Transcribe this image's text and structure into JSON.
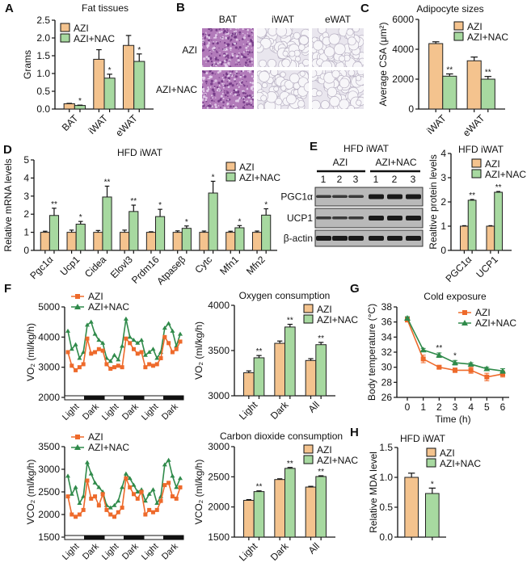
{
  "colors": {
    "azi_bar": "#F4C38E",
    "nac_bar": "#A7D9A0",
    "azi_line": "#EE6A2B",
    "nac_line": "#2F8A4A",
    "bat_stain": "#B27BBA",
    "wat_stain": "#E9E6EE"
  },
  "panels": {
    "B": {
      "label": "B",
      "columns": [
        "BAT",
        "iWAT",
        "eWAT"
      ],
      "rows": [
        "AZI",
        "AZI+NAC"
      ]
    },
    "E_blot": {
      "label": "E",
      "title": "HFD iWAT",
      "groups": [
        "AZI",
        "AZI+NAC"
      ],
      "lanes": [
        "1",
        "2",
        "3",
        "1",
        "2",
        "3"
      ],
      "bands": [
        "PGC1α",
        "UCP1",
        "β-actin"
      ]
    }
  },
  "chart_data": [
    {
      "panel_label": "A",
      "type": "bar",
      "title": "Fat tissues",
      "xlabel": "",
      "ylabel": "Grams",
      "categories": [
        "BAT",
        "iWAT",
        "eWAT"
      ],
      "series": [
        {
          "name": "AZI",
          "values": [
            0.15,
            1.4,
            1.79
          ],
          "errors": [
            0.01,
            0.27,
            0.28
          ]
        },
        {
          "name": "AZI+NAC",
          "values": [
            0.1,
            0.87,
            1.34
          ],
          "errors": [
            0.01,
            0.11,
            0.21
          ]
        }
      ],
      "significance": [
        "*",
        "*",
        "*"
      ],
      "ylim": [
        0,
        2.5
      ],
      "yticks": [
        "0.0",
        "0.5",
        "1.0",
        "1.5",
        "2.0",
        "2.5"
      ],
      "legend": "top-left"
    },
    {
      "panel_label": "C",
      "type": "bar",
      "title": "Adipocyte sizes",
      "xlabel": "",
      "ylabel": "Average CSA (μm²)",
      "categories": [
        "iWAT",
        "eWAT"
      ],
      "series": [
        {
          "name": "AZI",
          "values": [
            4380,
            3230
          ],
          "errors": [
            120,
            250
          ]
        },
        {
          "name": "AZI+NAC",
          "values": [
            2200,
            2000
          ],
          "errors": [
            150,
            180
          ]
        }
      ],
      "significance": [
        "**",
        "**"
      ],
      "ylim": [
        0,
        6000
      ],
      "yticks": [
        "0",
        "2000",
        "4000",
        "6000"
      ],
      "legend": "top-right"
    },
    {
      "panel_label": "D",
      "type": "bar",
      "title": "HFD iWAT",
      "xlabel": "",
      "ylabel": "Relative mRNA levels",
      "categories": [
        "Pgc1α",
        "Ucp1",
        "Cidea",
        "Elovl3",
        "Prdm16",
        "Atpaseβ",
        "Cytc",
        "Mfn1",
        "Mfn2"
      ],
      "series": [
        {
          "name": "AZI",
          "values": [
            1,
            1,
            1,
            1,
            1,
            1,
            1,
            1,
            1
          ],
          "errors": [
            0.06,
            0.12,
            0.1,
            0.12,
            0.03,
            0.08,
            0.07,
            0.06,
            0.07
          ]
        },
        {
          "name": "AZI+NAC",
          "values": [
            1.93,
            1.45,
            2.95,
            2.15,
            1.87,
            1.22,
            3.17,
            1.25,
            1.95
          ],
          "errors": [
            0.4,
            0.15,
            0.6,
            0.35,
            0.4,
            0.13,
            0.65,
            0.12,
            0.35
          ]
        }
      ],
      "significance": [
        "**",
        "*",
        "**",
        "**",
        "*",
        "*",
        "*",
        "*",
        "*"
      ],
      "ylim": [
        0,
        5
      ],
      "yticks": [
        "0",
        "1",
        "2",
        "3",
        "4",
        "5"
      ],
      "legend": "top-right"
    },
    {
      "panel_label": "",
      "type": "bar",
      "title": "HFD iWAT",
      "xlabel": "",
      "ylabel": "Realtive protein levels",
      "categories": [
        "PGC1α",
        "UCP1"
      ],
      "series": [
        {
          "name": "AZI",
          "values": [
            1.0,
            1.0
          ],
          "errors": [
            0.02,
            0.02
          ]
        },
        {
          "name": "AZI+NAC",
          "values": [
            2.07,
            2.4
          ],
          "errors": [
            0.03,
            0.03
          ]
        }
      ],
      "significance": [
        "**",
        "**"
      ],
      "ylim": [
        0,
        4
      ],
      "yticks": [
        "0",
        "1",
        "2",
        "3",
        "4"
      ],
      "legend": "top-right"
    },
    {
      "panel_label": "F",
      "type": "line",
      "title": "",
      "xlabel": "",
      "ylabel": "VO₂ (ml/kg/h)",
      "phases": [
        "Light",
        "Dark",
        "Light",
        "Dark",
        "Light",
        "Dark"
      ],
      "series": [
        {
          "name": "AZI",
          "values": [
            3500,
            3050,
            2900,
            3000,
            3100,
            3950,
            3450,
            3500,
            3600,
            3550,
            3100,
            2950,
            3000,
            3050,
            3000,
            3950,
            3800,
            3600,
            3450,
            3500,
            3000,
            3100,
            3050,
            3100,
            3300,
            4000,
            3800,
            3500,
            3600,
            3850
          ]
        },
        {
          "name": "AZI+NAC",
          "values": [
            4200,
            3600,
            3750,
            3300,
            3500,
            4400,
            4500,
            4100,
            3900,
            3800,
            3300,
            3200,
            3400,
            3250,
            3700,
            4600,
            4000,
            3900,
            3800,
            3900,
            3400,
            3500,
            3600,
            3300,
            3500,
            4300,
            4450,
            4200,
            3700,
            4100
          ]
        }
      ],
      "ylim": [
        2000,
        5000
      ],
      "yticks": [
        "2000",
        "3000",
        "4000",
        "5000"
      ],
      "legend": "top-left"
    },
    {
      "panel_label": "",
      "type": "bar",
      "title": "Oxygen consumption",
      "xlabel": "",
      "ylabel": "VO₂ (ml/kg/h)",
      "categories": [
        "Light",
        "Dark",
        "All"
      ],
      "series": [
        {
          "name": "AZI",
          "values": [
            3255,
            3580,
            3390
          ],
          "errors": [
            20,
            25,
            20
          ]
        },
        {
          "name": "AZI+NAC",
          "values": [
            3420,
            3760,
            3565
          ],
          "errors": [
            25,
            30,
            25
          ]
        }
      ],
      "significance": [
        "**",
        "**",
        "**"
      ],
      "ylim": [
        3000,
        4000
      ],
      "yticks": [
        "3000",
        "3500",
        "4000"
      ],
      "legend": "top-right"
    },
    {
      "panel_label": "",
      "type": "line",
      "title": "",
      "xlabel": "",
      "ylabel": "VCO₂ (ml/kg/h)",
      "phases": [
        "Light",
        "Dark",
        "Light",
        "Dark",
        "Light",
        "Dark"
      ],
      "series": [
        {
          "name": "AZI",
          "values": [
            2400,
            2000,
            1950,
            2000,
            2100,
            2750,
            2350,
            2400,
            2200,
            2450,
            2100,
            2000,
            1950,
            2050,
            2150,
            2800,
            2600,
            2450,
            2350,
            2500,
            2000,
            2100,
            2050,
            2100,
            2300,
            2650,
            2700,
            2400,
            2350,
            2600
          ]
        },
        {
          "name": "AZI+NAC",
          "values": [
            2850,
            2450,
            2600,
            2250,
            2400,
            3150,
            2900,
            2700,
            2600,
            2500,
            2200,
            2150,
            2200,
            2300,
            2600,
            2900,
            2800,
            2650,
            2500,
            2550,
            2300,
            2450,
            2550,
            2250,
            2400,
            3100,
            3200,
            2850,
            2600,
            2800
          ]
        }
      ],
      "ylim": [
        1500,
        3500
      ],
      "yticks": [
        "1500",
        "2000",
        "2500",
        "3000",
        "3500"
      ],
      "legend": "top-left"
    },
    {
      "panel_label": "",
      "type": "bar",
      "title": "Carbon dioxide consumption",
      "xlabel": "",
      "ylabel": "VCO₂ (ml/kg/h)",
      "categories": [
        "Light",
        "Dark",
        "All"
      ],
      "series": [
        {
          "name": "AZI",
          "values": [
            2110,
            2455,
            2330
          ],
          "errors": [
            12,
            12,
            12
          ]
        },
        {
          "name": "AZI+NAC",
          "values": [
            2255,
            2640,
            2505
          ],
          "errors": [
            12,
            15,
            12
          ]
        }
      ],
      "significance": [
        "**",
        "**",
        "**"
      ],
      "ylim": [
        1500,
        3000
      ],
      "yticks": [
        "1500",
        "2000",
        "2500",
        "3000"
      ],
      "legend": "top-right"
    },
    {
      "panel_label": "G",
      "type": "line",
      "title": "Cold exposure",
      "xlabel": "Time (h)",
      "ylabel": "Body temperature (°C)",
      "x": [
        0,
        1,
        2,
        3,
        4,
        5,
        6
      ],
      "xticks": [
        "0",
        "1",
        "2",
        "3",
        "4",
        "5",
        "6"
      ],
      "series": [
        {
          "name": "AZI",
          "values": [
            36.3,
            31.1,
            30.0,
            29.6,
            29.6,
            28.7,
            29.1
          ],
          "errors": [
            0.3,
            0.5,
            0.2,
            0.3,
            0.4,
            0.5,
            0.4
          ]
        },
        {
          "name": "AZI+NAC",
          "values": [
            36.5,
            32.3,
            31.6,
            30.6,
            30.4,
            29.8,
            29.5
          ],
          "errors": [
            0.2,
            0.2,
            0.3,
            0.3,
            0.2,
            0.2,
            0.3
          ]
        }
      ],
      "significance": [
        "",
        "",
        "**",
        "*",
        "",
        "",
        ""
      ],
      "ylim": [
        26,
        38
      ],
      "yticks": [
        "26",
        "28",
        "30",
        "32",
        "34",
        "36",
        "38"
      ],
      "legend": "top-right"
    },
    {
      "panel_label": "H",
      "type": "bar",
      "title": "HFD iWAT",
      "xlabel": "",
      "ylabel": "Relative MDA level",
      "categories": [
        ""
      ],
      "series": [
        {
          "name": "AZI",
          "values": [
            1.0
          ],
          "errors": [
            0.07
          ]
        },
        {
          "name": "AZI+NAC",
          "values": [
            0.73
          ],
          "errors": [
            0.09
          ]
        }
      ],
      "significance": [
        "*"
      ],
      "ylim": [
        0,
        1.5
      ],
      "yticks": [
        "0.0",
        "0.5",
        "1.0",
        "1.5"
      ],
      "legend": "top-right"
    }
  ]
}
